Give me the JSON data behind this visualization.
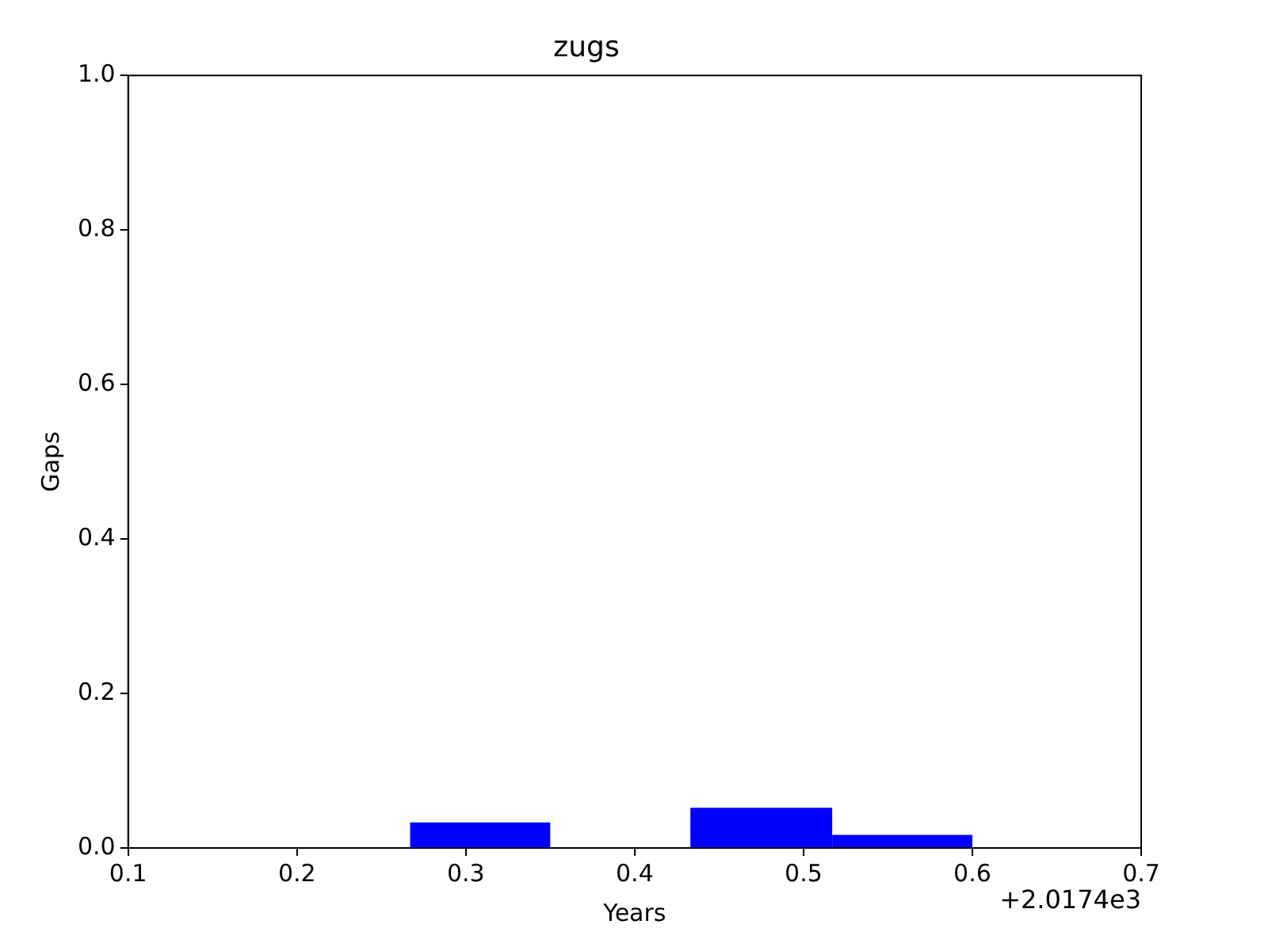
{
  "chart_data": {
    "type": "histogram",
    "title": "zugs",
    "xlabel": "Years",
    "ylabel": "Gaps",
    "bins": [
      0.267,
      0.35,
      0.433,
      0.517,
      0.6
    ],
    "values": [
      0.033,
      0,
      0.052,
      0.017
    ],
    "color": "#0000ff",
    "xlim": [
      0.1,
      0.7
    ],
    "xticks": [
      0.1,
      0.2,
      0.3,
      0.4,
      0.5,
      0.6,
      0.7
    ],
    "ylim": [
      0,
      1
    ],
    "yticks": [
      {
        "value": 0,
        "label": "0.0"
      },
      {
        "value": 0.2,
        "label": "0.2"
      },
      {
        "value": 0.4,
        "label": "0.4"
      },
      {
        "value": 0.6,
        "label": "0.6"
      },
      {
        "value": 0.8,
        "label": "0.8"
      },
      {
        "value": 1,
        "label": "1.0"
      }
    ],
    "annotations": [
      "+2.0174e3"
    ],
    "grid": false,
    "legend": false
  }
}
